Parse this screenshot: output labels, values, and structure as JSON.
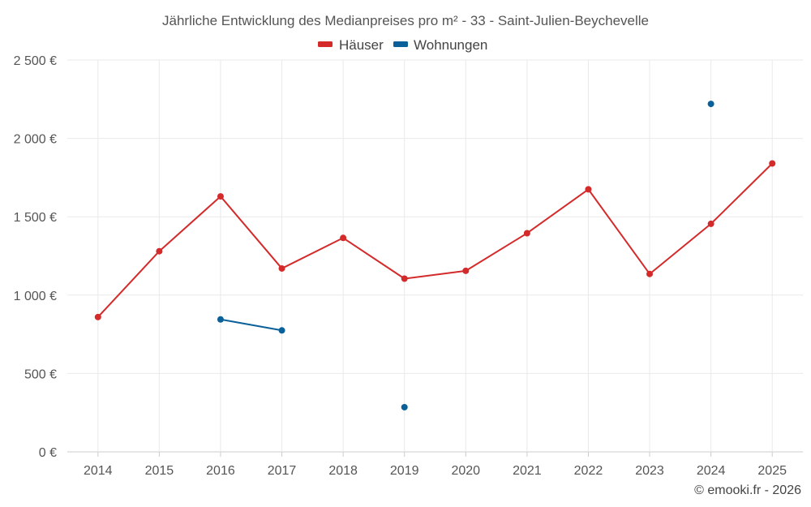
{
  "chart_data": {
    "type": "line",
    "title": "Jährliche Entwicklung des Medianpreises pro m² - 33 - Saint-Julien-Beychevelle",
    "categories": [
      "2014",
      "2015",
      "2016",
      "2017",
      "2018",
      "2019",
      "2020",
      "2021",
      "2022",
      "2023",
      "2024",
      "2025"
    ],
    "ylim": [
      0,
      2500
    ],
    "yticks": [
      0,
      500,
      1000,
      1500,
      2000,
      2500
    ],
    "ytick_labels": [
      "0 €",
      "500 €",
      "1 000 €",
      "1 500 €",
      "2 000 €",
      "2 500 €"
    ],
    "xlabel": "",
    "ylabel": "",
    "grid": true,
    "legend_position": "top-center",
    "series": [
      {
        "name": "Häuser",
        "color": "#d42a2a",
        "values": [
          860,
          1280,
          1630,
          1170,
          1365,
          1105,
          1155,
          1395,
          1675,
          1135,
          1455,
          1840
        ]
      },
      {
        "name": "Wohnungen",
        "color": "#0a6199",
        "values": [
          null,
          null,
          845,
          775,
          null,
          285,
          null,
          null,
          null,
          null,
          2220,
          null
        ]
      }
    ]
  },
  "credit": "© emooki.fr - 2026"
}
